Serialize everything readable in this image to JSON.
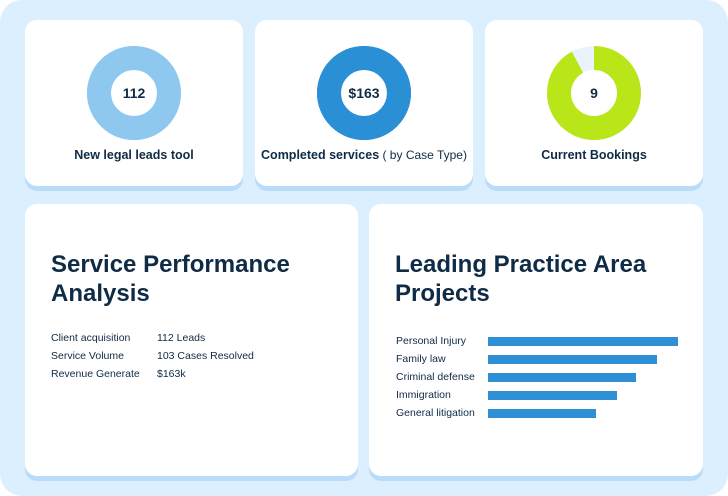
{
  "stats": [
    {
      "value": "112",
      "label": "New legal leads tool",
      "suffix": "",
      "ring_color": "#8ec8ef",
      "track_color": "#8ec8ef",
      "fill_fraction": 1.0
    },
    {
      "value": "$163",
      "label": "Completed services",
      "suffix": " ( by Case Type)",
      "ring_color": "#2b8fd6",
      "track_color": "#2b8fd6",
      "fill_fraction": 1.0
    },
    {
      "value": "9",
      "label": "Current Bookings",
      "suffix": "",
      "ring_color": "#b9e619",
      "track_color": "#eaf3fb",
      "fill_fraction": 0.92
    }
  ],
  "performance": {
    "title_line1": "Service Performance",
    "title_line2": "Analysis",
    "metrics": [
      {
        "label": "Client acquisition",
        "value": "112 Leads"
      },
      {
        "label": "Service Volume",
        "value": "103 Cases Resolved"
      },
      {
        "label": "Revenue Generate",
        "value": "$163k"
      }
    ]
  },
  "areas": {
    "title_line1": "Leading Practice Area",
    "title_line2": "Projects",
    "items": [
      {
        "label": "Personal Injury",
        "fraction": 1.0
      },
      {
        "label": "Family law",
        "fraction": 0.89
      },
      {
        "label": "Criminal defense",
        "fraction": 0.78
      },
      {
        "label": "Immigration",
        "fraction": 0.68
      },
      {
        "label": "General litigation",
        "fraction": 0.57
      }
    ]
  }
}
